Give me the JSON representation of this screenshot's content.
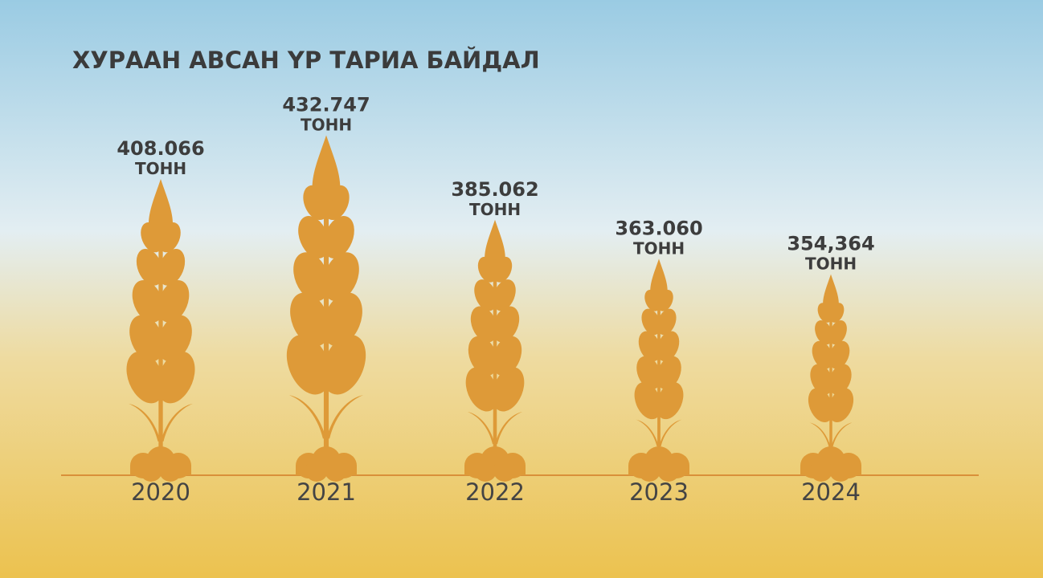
{
  "chart_data": {
    "type": "pictograph",
    "title": "ХУРААН АВСАН ҮР ТАРИА  БАЙДАЛ",
    "categories": [
      "2020",
      "2021",
      "2022",
      "2023",
      "2024"
    ],
    "values": [
      408066,
      432747,
      385062,
      363060,
      354364
    ],
    "value_labels": [
      "408.066",
      "432.747",
      "385.062",
      "363.060",
      "354,364"
    ],
    "unit": "ТОНН",
    "color": "#de9a38",
    "ylim": [
      250000,
      450000
    ]
  }
}
